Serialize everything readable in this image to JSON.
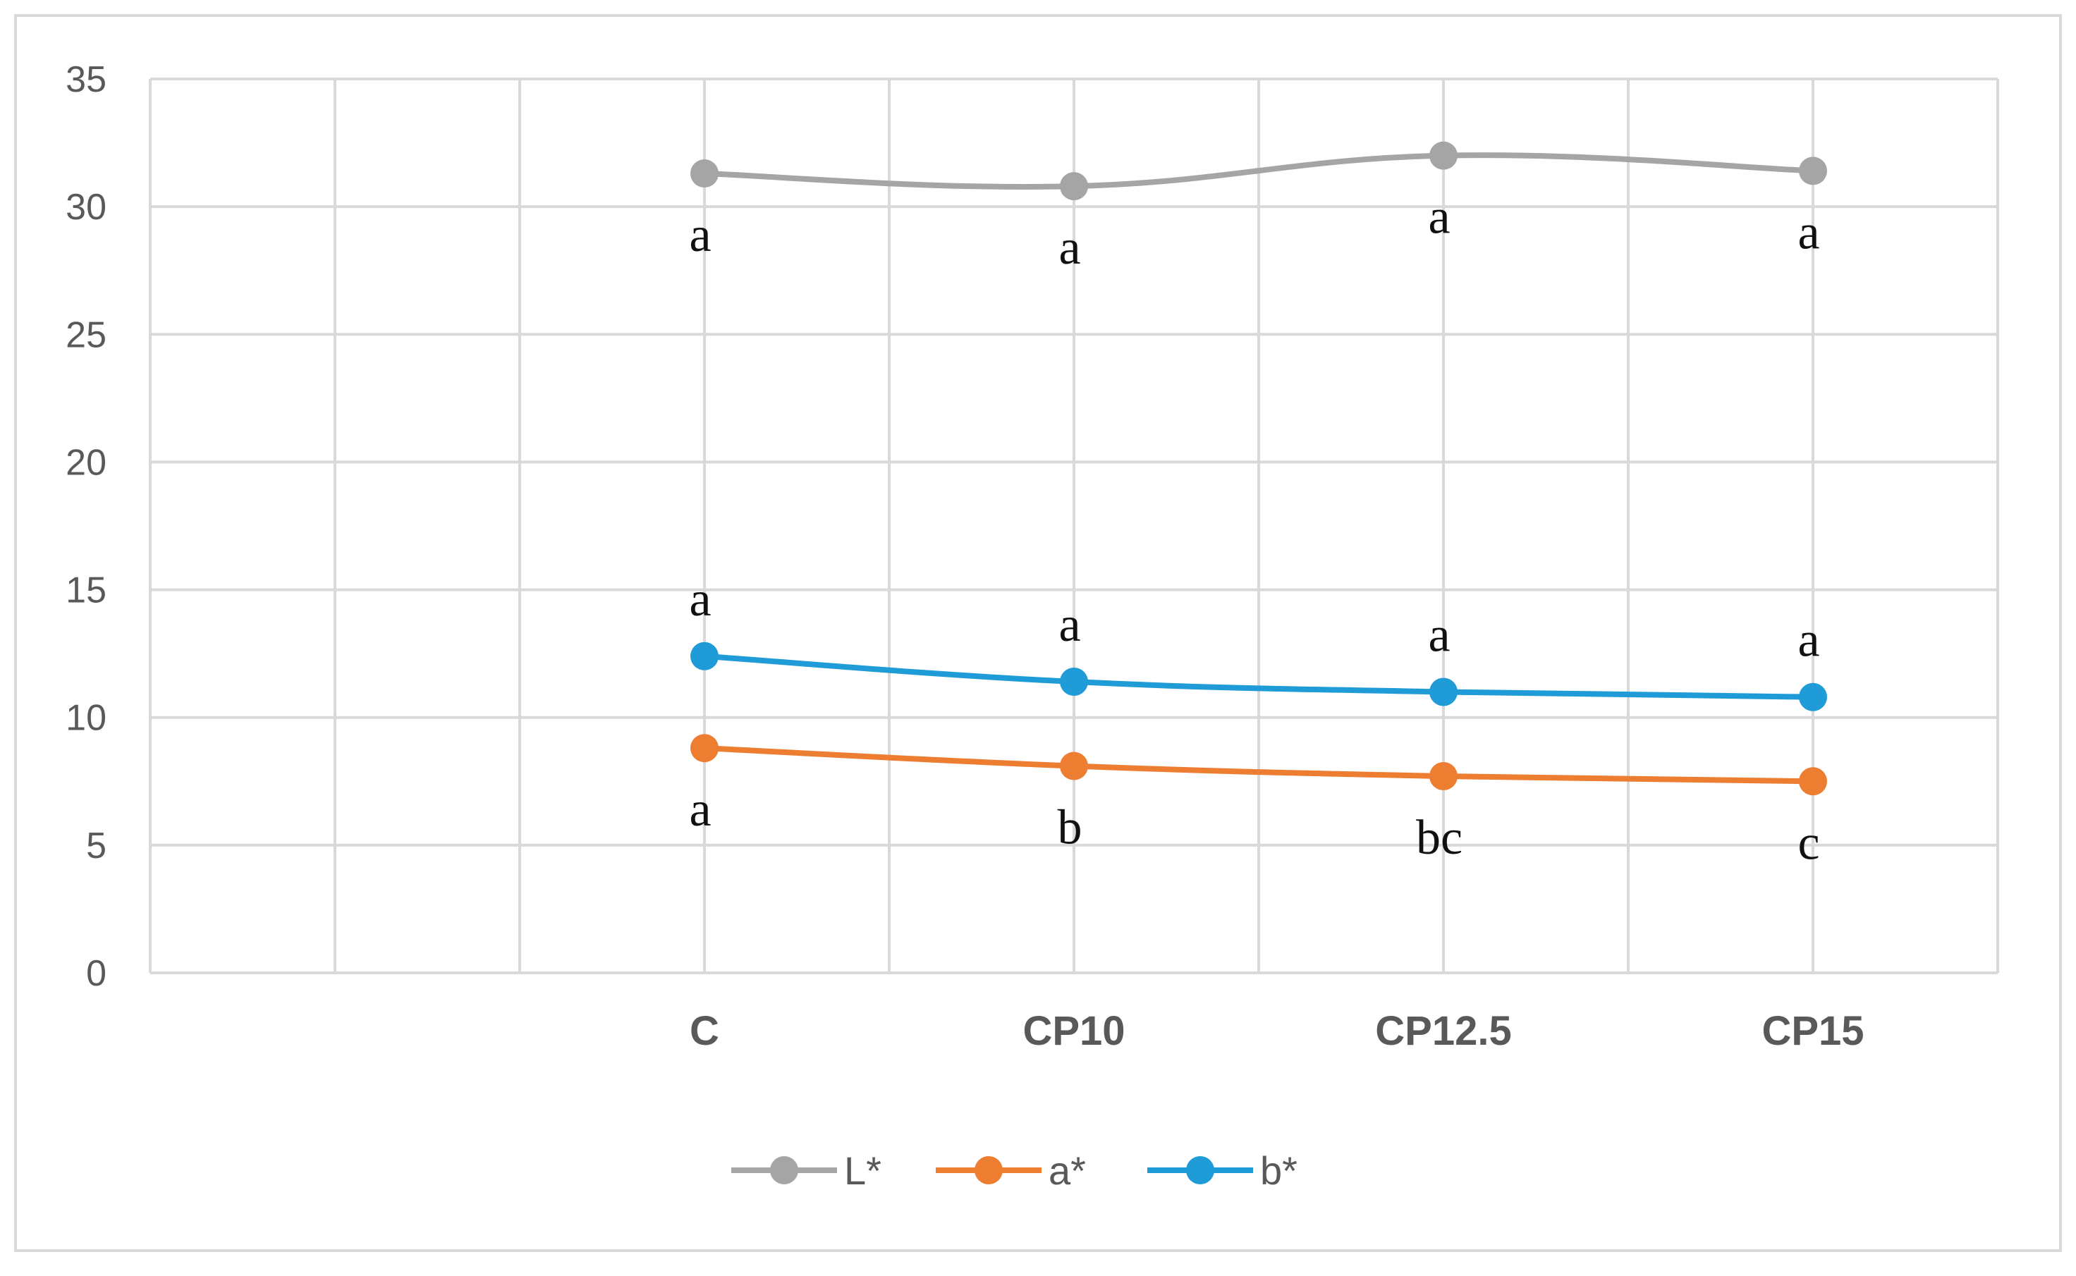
{
  "chart_data": {
    "type": "line",
    "title": "",
    "xlabel": "",
    "ylabel": "",
    "categories": [
      "C",
      "CP10",
      "CP12.5",
      "CP15"
    ],
    "ylim": [
      0,
      35
    ],
    "yticks": [
      "0",
      "5",
      "10",
      "15",
      "20",
      "25",
      "30",
      "35"
    ],
    "grid": true,
    "smooth": true,
    "legend_position": "bottom",
    "series": [
      {
        "name": "L*",
        "color": "#a5a5a5",
        "values": [
          31.3,
          30.8,
          32.0,
          31.4
        ],
        "significance": [
          "a",
          "a",
          "a",
          "a"
        ],
        "label_side": "below"
      },
      {
        "name": "a*",
        "color": "#ed7d31",
        "values": [
          8.8,
          8.1,
          7.7,
          7.5
        ],
        "significance": [
          "a",
          "b",
          "bc",
          "c"
        ],
        "label_side": "below"
      },
      {
        "name": "b*",
        "color": "#1f9bd7",
        "values": [
          12.4,
          11.4,
          11.0,
          10.8
        ],
        "significance": [
          "a",
          "a",
          "a",
          "a"
        ],
        "label_side": "above"
      }
    ]
  }
}
